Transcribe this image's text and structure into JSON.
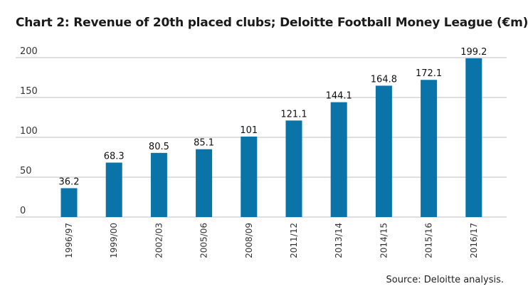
{
  "chart_data": {
    "type": "bar",
    "title": "Chart 2: Revenue of 20th placed clubs; Deloitte Football Money League (€m)",
    "categories": [
      "1996/97",
      "1999/00",
      "2002/03",
      "2005/06",
      "2008/09",
      "2011/12",
      "2013/14",
      "2014/15",
      "2015/16",
      "2016/17"
    ],
    "values": [
      36.2,
      68.3,
      80.5,
      85.1,
      101,
      121.1,
      144.1,
      164.8,
      172.1,
      199.2
    ],
    "data_labels": [
      "36.2",
      "68.3",
      "80.5",
      "85.1",
      "101",
      "121.1",
      "144.1",
      "164.8",
      "172.1",
      "199.2"
    ],
    "yticks": [
      0,
      50,
      100,
      150,
      200
    ],
    "ylim": [
      0,
      200
    ],
    "xlabel": "",
    "ylabel": "",
    "grid": true,
    "bar_color": "#0a73a8",
    "grid_color": "#bfbfbf",
    "source": "Source: Deloitte analysis."
  }
}
